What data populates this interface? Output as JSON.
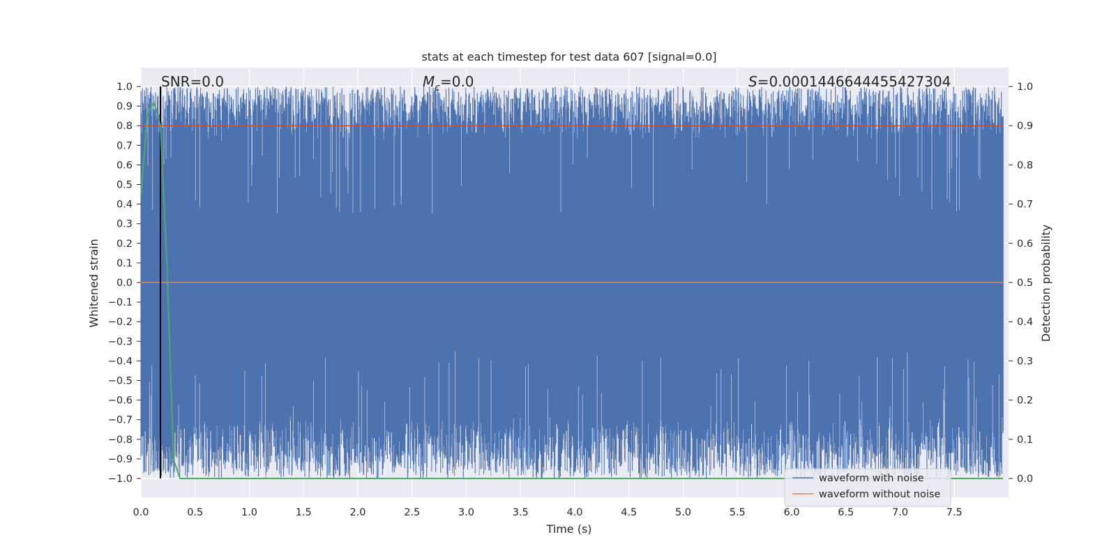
{
  "chart_data": {
    "type": "line",
    "title": "stats at each timestep for test data 607 [signal=0.0]",
    "xlabel": "Time (s)",
    "ylabel_left": "Whitened strain",
    "ylabel_right": "Detection probability",
    "xlim": [
      0.0,
      8.0
    ],
    "ylim_left": [
      -1.0,
      1.0
    ],
    "ylim_right": [
      0.0,
      1.0
    ],
    "x_ticks": [
      "0.0",
      "0.5",
      "1.0",
      "1.5",
      "2.0",
      "2.5",
      "3.0",
      "3.5",
      "4.0",
      "4.5",
      "5.0",
      "5.5",
      "6.0",
      "6.5",
      "7.0",
      "7.5"
    ],
    "y_left_ticks": [
      "1.0",
      "0.9",
      "0.8",
      "0.7",
      "0.6",
      "0.5",
      "0.4",
      "0.3",
      "0.2",
      "0.1",
      "0.0",
      "−0.1",
      "−0.2",
      "−0.3",
      "−0.4",
      "−0.5",
      "−0.6",
      "−0.7",
      "−0.8",
      "−0.9",
      "−1.0"
    ],
    "y_right_ticks": [
      "1.0",
      "0.9",
      "0.8",
      "0.7",
      "0.6",
      "0.5",
      "0.4",
      "0.3",
      "0.2",
      "0.1",
      "0.0"
    ],
    "grid": true,
    "legend_position": "lower-right",
    "annotations": {
      "snr_label": "SNR=0.0",
      "mc_symbol": "M",
      "mc_sub": "c",
      "mc_value": "=0.0",
      "s_symbol": "S",
      "s_value": "=0.0001446644455427304"
    },
    "series": [
      {
        "name": "waveform with noise",
        "axis": "left",
        "color": "#4c72b0",
        "description_values": "dense noise between about -1.0 and 1.0 over 0 to 8 s"
      },
      {
        "name": "waveform without noise",
        "axis": "left",
        "color": "#dd8452",
        "values_constant": 0.0
      },
      {
        "axis": "right",
        "color": "#55a868",
        "x": [
          0.0,
          0.06,
          0.12,
          0.18,
          0.24,
          0.3,
          0.36,
          0.42,
          7.95
        ],
        "y": [
          0.72,
          0.93,
          0.96,
          0.9,
          0.55,
          0.05,
          0.0,
          0.0,
          0.0
        ]
      }
    ],
    "reference_lines": {
      "threshold_right": 0.9,
      "threshold_color": "#c44e52",
      "vertical_line_x": 0.18,
      "vertical_line_color": "#000000"
    }
  },
  "colors": {
    "plot_bg": "#eaeaf2",
    "grid": "#ffffff",
    "text": "#262626"
  }
}
